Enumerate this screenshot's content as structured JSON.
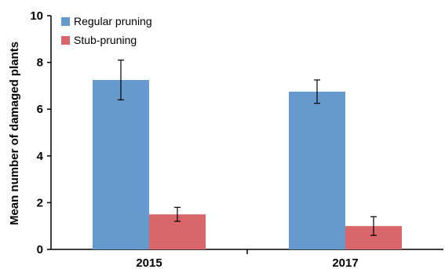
{
  "chart_data": {
    "type": "bar",
    "title": "",
    "xlabel": "",
    "ylabel": "Mean number of damaged plants",
    "categories": [
      "2015",
      "2017"
    ],
    "ylim": [
      0,
      10
    ],
    "yticks": [
      "0",
      "2",
      "4",
      "6",
      "8",
      "10"
    ],
    "grid": false,
    "legend_position": "top-left",
    "series": [
      {
        "name": "Regular pruning",
        "color": "#6699cc",
        "values": [
          7.25,
          6.75
        ],
        "error_low": [
          6.4,
          6.25
        ],
        "error_high": [
          8.1,
          7.25
        ]
      },
      {
        "name": "Stub-pruning",
        "color": "#d9666a",
        "values": [
          1.5,
          1.0
        ],
        "error_low": [
          1.2,
          0.6
        ],
        "error_high": [
          1.8,
          1.4
        ]
      }
    ]
  }
}
